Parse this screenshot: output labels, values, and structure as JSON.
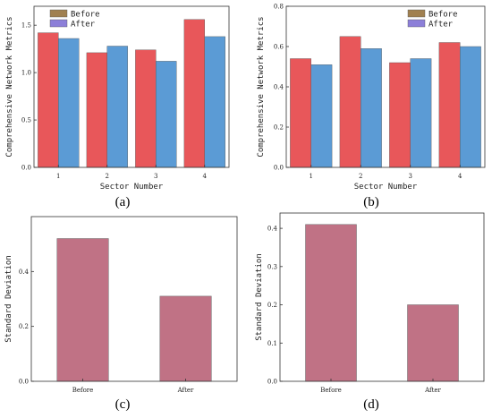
{
  "chart_data": [
    {
      "panel": "(a)",
      "type": "bar",
      "categories": [
        "1",
        "2",
        "3",
        "4"
      ],
      "series": [
        {
          "name": "Before",
          "values": [
            1.42,
            1.21,
            1.24,
            1.56
          ],
          "color": "#e8575a"
        },
        {
          "name": "After",
          "values": [
            1.36,
            1.28,
            1.12,
            1.38
          ],
          "color": "#5b9bd5"
        }
      ],
      "legend_swatch_colors": [
        "#a08050",
        "#8c7fd8"
      ],
      "xlabel": "Sector Number",
      "ylabel": "Comprehensive Network Metrics",
      "ylim": [
        0,
        1.7
      ],
      "yticks": [
        0,
        0.5,
        1.0,
        1.5
      ],
      "ytick_labels": [
        "0.0",
        "0.5",
        "1.0",
        "1.5"
      ],
      "grid": false,
      "legend": "top-left"
    },
    {
      "panel": "(b)",
      "type": "bar",
      "categories": [
        "1",
        "2",
        "3",
        "4"
      ],
      "series": [
        {
          "name": "Before",
          "values": [
            0.54,
            0.65,
            0.52,
            0.62
          ],
          "color": "#e8575a"
        },
        {
          "name": "After",
          "values": [
            0.51,
            0.59,
            0.54,
            0.6
          ],
          "color": "#5b9bd5"
        }
      ],
      "legend_swatch_colors": [
        "#a08050",
        "#8c7fd8"
      ],
      "xlabel": "Sector Number",
      "ylabel": "Comprehensive Network Metrics",
      "ylim": [
        0,
        0.8
      ],
      "yticks": [
        0,
        0.2,
        0.4,
        0.6,
        0.8
      ],
      "ytick_labels": [
        "0.0",
        "0.2",
        "0.4",
        "0.6",
        "0.8"
      ],
      "grid": false,
      "legend": "top-right"
    },
    {
      "panel": "(c)",
      "type": "bar",
      "categories": [
        "Before",
        "After"
      ],
      "values": [
        0.52,
        0.31
      ],
      "color": "#c07285",
      "xlabel": "",
      "ylabel": "Standard Deviation",
      "ylim": [
        0,
        0.6
      ],
      "yticks": [
        0,
        0.2,
        0.4
      ],
      "ytick_labels": [
        "0.0",
        "0.2",
        "0.4"
      ],
      "grid": false
    },
    {
      "panel": "(d)",
      "type": "bar",
      "categories": [
        "Before",
        "After"
      ],
      "values": [
        0.41,
        0.2
      ],
      "color": "#c07285",
      "xlabel": "",
      "ylabel": "Standard Deviation",
      "ylim": [
        0,
        0.44
      ],
      "yticks": [
        0,
        0.1,
        0.2,
        0.3,
        0.4
      ],
      "ytick_labels": [
        "0.0",
        "0.1",
        "0.2",
        "0.3",
        "0.4"
      ],
      "grid": false
    }
  ]
}
